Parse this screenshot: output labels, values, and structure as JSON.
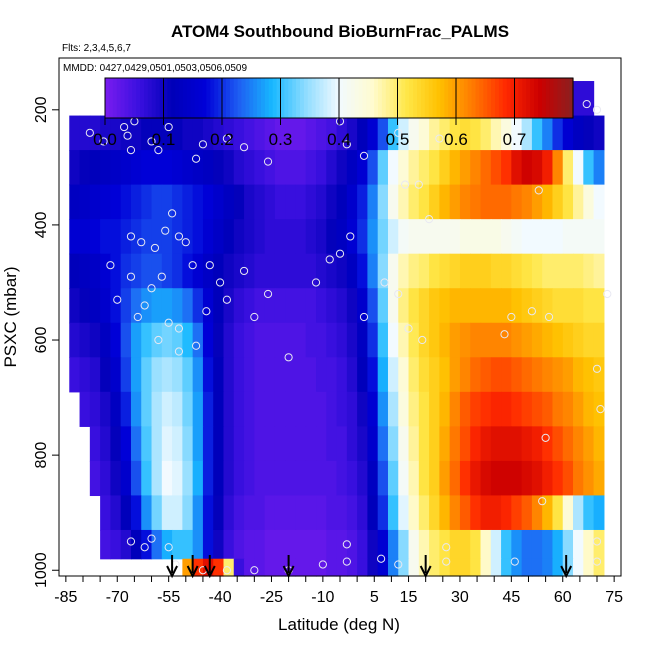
{
  "chart_data": {
    "type": "heatmap",
    "title": "ATOM4 Southbound BioBurnFrac_PALMS",
    "subtitle": "Flts: 2,3,4,5,6,7",
    "annotation": "MMDD: 0427,0429,0501,0503,0506,0509",
    "xlabel": "Latitude (deg N)",
    "ylabel": "PSXC (mbar)",
    "xlim": [
      -87,
      77
    ],
    "ylim": [
      1010,
      110
    ],
    "y_reversed": true,
    "x_ticks": [
      -85,
      -70,
      -55,
      -40,
      -25,
      -10,
      5,
      15,
      30,
      45,
      60,
      75
    ],
    "x_minor_step": 5,
    "y_ticks": [
      200,
      400,
      600,
      800,
      1000
    ],
    "colorbar": {
      "min": 0.0,
      "max": 0.8,
      "ticks": [
        0.0,
        0.1,
        0.2,
        0.3,
        0.4,
        0.5,
        0.6,
        0.7
      ],
      "tick_labels": [
        "0.0",
        "0.1",
        "0.2",
        "0.3",
        "0.4",
        "0.5",
        "0.6",
        "0.7"
      ],
      "colors": [
        "#7a1cf0",
        "#3b10e0",
        "#0000b8",
        "#0000d8",
        "#1e5ef2",
        "#17b8ff",
        "#8edcff",
        "#f2faff",
        "#fffbd0",
        "#ffe84a",
        "#ffc000",
        "#ff7a00",
        "#ff2800",
        "#cc0000",
        "#8a2020"
      ]
    },
    "field_latitude_edges": [
      -84,
      -81,
      -78,
      -75,
      -72,
      -69,
      -66,
      -63,
      -60,
      -57,
      -54,
      -51,
      -48,
      -45,
      -42,
      -39,
      -36,
      -33,
      -30,
      -27,
      -24,
      -21,
      -18,
      -15,
      -12,
      -9,
      -6,
      -3,
      0,
      3,
      6,
      9,
      12,
      15,
      18,
      21,
      24,
      27,
      30,
      33,
      36,
      39,
      42,
      45,
      48,
      51,
      54,
      57,
      60,
      63,
      66,
      69,
      72
    ],
    "field_pressure_levels": [
      180,
      240,
      300,
      360,
      420,
      480,
      540,
      600,
      660,
      720,
      780,
      840,
      900,
      960,
      1000
    ],
    "field_values": [
      [
        null,
        null,
        null,
        null,
        null,
        null,
        null,
        0.06,
        0.06,
        0.06,
        0.06,
        0.05,
        0.05,
        0.05,
        0.04,
        0.04,
        0.03,
        0.03,
        0.02,
        0.02,
        0.01,
        0.01,
        0.02,
        0.02,
        0.03,
        0.03,
        0.04,
        0.05,
        0.07,
        0.09,
        0.12,
        0.14,
        0.16,
        0.18,
        0.2,
        0.21,
        0.22,
        0.22,
        0.22,
        0.22,
        0.2,
        0.18,
        0.16,
        0.14,
        0.12,
        0.1,
        0.09,
        0.08,
        0.07,
        0.07,
        0.07,
        null
      ],
      [
        0.08,
        0.08,
        0.08,
        0.09,
        0.09,
        0.1,
        0.1,
        0.11,
        0.11,
        0.11,
        0.11,
        0.1,
        0.1,
        0.09,
        0.08,
        0.07,
        0.06,
        0.05,
        0.04,
        0.03,
        0.02,
        0.02,
        0.02,
        0.03,
        0.04,
        0.05,
        0.07,
        0.09,
        0.12,
        0.16,
        0.22,
        0.3,
        0.38,
        0.42,
        0.45,
        0.48,
        0.5,
        0.52,
        0.53,
        0.52,
        0.5,
        0.47,
        0.44,
        0.4,
        0.36,
        0.3,
        0.25,
        0.2,
        0.16,
        0.13,
        0.11,
        0.1
      ],
      [
        0.1,
        0.11,
        0.12,
        0.13,
        0.14,
        0.15,
        0.16,
        0.17,
        0.17,
        0.17,
        0.16,
        0.15,
        0.14,
        0.13,
        0.11,
        0.1,
        0.08,
        0.07,
        0.06,
        0.05,
        0.04,
        0.04,
        0.04,
        0.05,
        0.06,
        0.08,
        0.1,
        0.13,
        0.16,
        0.22,
        0.32,
        0.4,
        0.45,
        0.48,
        0.5,
        0.52,
        0.55,
        0.58,
        0.6,
        0.62,
        0.64,
        0.66,
        0.68,
        0.72,
        0.74,
        0.73,
        0.7,
        0.62,
        0.5,
        0.4,
        0.3,
        0.25
      ],
      [
        0.13,
        0.14,
        0.15,
        0.16,
        0.17,
        0.18,
        0.19,
        0.2,
        0.21,
        0.21,
        0.2,
        0.19,
        0.18,
        0.17,
        0.15,
        0.13,
        0.11,
        0.09,
        0.08,
        0.07,
        0.06,
        0.06,
        0.06,
        0.07,
        0.08,
        0.1,
        0.12,
        0.15,
        0.19,
        0.25,
        0.34,
        0.42,
        0.47,
        0.5,
        0.52,
        0.55,
        0.58,
        0.6,
        0.62,
        0.63,
        0.64,
        0.64,
        0.64,
        0.63,
        0.62,
        0.6,
        0.58,
        0.55,
        0.52,
        0.48,
        0.44,
        0.4
      ],
      [
        0.16,
        0.16,
        0.17,
        0.18,
        0.18,
        0.19,
        0.2,
        0.21,
        0.21,
        0.21,
        0.2,
        0.19,
        0.18,
        0.16,
        0.14,
        0.12,
        0.1,
        0.09,
        0.08,
        0.07,
        0.07,
        0.07,
        0.07,
        0.08,
        0.09,
        0.11,
        0.13,
        0.16,
        0.2,
        0.26,
        0.33,
        0.38,
        0.41,
        0.42,
        0.42,
        0.42,
        0.42,
        0.42,
        0.43,
        0.43,
        0.43,
        0.43,
        0.42,
        0.41,
        0.4,
        0.4,
        0.4,
        0.4,
        0.41,
        0.41,
        0.41,
        0.41
      ],
      [
        0.12,
        0.13,
        0.14,
        0.16,
        0.18,
        0.2,
        0.21,
        0.22,
        0.22,
        0.21,
        0.2,
        0.18,
        0.16,
        0.14,
        0.12,
        0.1,
        0.09,
        0.08,
        0.07,
        0.07,
        0.07,
        0.07,
        0.07,
        0.07,
        0.08,
        0.09,
        0.1,
        0.13,
        0.18,
        0.25,
        0.34,
        0.42,
        0.47,
        0.49,
        0.5,
        0.52,
        0.53,
        0.54,
        0.55,
        0.55,
        0.55,
        0.54,
        0.54,
        0.53,
        0.52,
        0.51,
        0.5,
        0.5,
        0.5,
        0.5,
        0.49,
        0.48
      ],
      [
        0.1,
        0.11,
        0.13,
        0.15,
        0.18,
        0.21,
        0.24,
        0.26,
        0.27,
        0.27,
        0.26,
        0.24,
        0.2,
        0.16,
        0.12,
        0.09,
        0.07,
        0.06,
        0.05,
        0.05,
        0.05,
        0.05,
        0.05,
        0.05,
        0.06,
        0.07,
        0.08,
        0.1,
        0.15,
        0.22,
        0.32,
        0.42,
        0.49,
        0.52,
        0.54,
        0.56,
        0.57,
        0.58,
        0.58,
        0.58,
        0.58,
        0.58,
        0.58,
        0.57,
        0.56,
        0.55,
        0.54,
        0.53,
        0.53,
        0.53,
        0.52,
        0.52
      ],
      [
        0.08,
        0.09,
        0.1,
        0.13,
        0.17,
        0.22,
        0.27,
        0.3,
        0.32,
        0.33,
        0.32,
        0.29,
        0.24,
        0.17,
        0.11,
        0.08,
        0.06,
        0.05,
        0.04,
        0.04,
        0.04,
        0.04,
        0.04,
        0.05,
        0.05,
        0.06,
        0.07,
        0.09,
        0.13,
        0.2,
        0.3,
        0.4,
        0.47,
        0.51,
        0.54,
        0.56,
        0.58,
        0.6,
        0.61,
        0.62,
        0.62,
        0.62,
        0.62,
        0.61,
        0.6,
        0.59,
        0.58,
        0.57,
        0.56,
        0.55,
        0.54,
        0.54
      ],
      [
        0.06,
        0.07,
        0.08,
        0.11,
        0.15,
        0.21,
        0.27,
        0.32,
        0.35,
        0.36,
        0.35,
        0.32,
        0.26,
        0.18,
        0.12,
        0.08,
        0.06,
        0.05,
        0.04,
        0.04,
        0.04,
        0.04,
        0.04,
        0.04,
        0.05,
        0.05,
        0.06,
        0.08,
        0.12,
        0.18,
        0.28,
        0.38,
        0.45,
        0.5,
        0.53,
        0.55,
        0.57,
        0.6,
        0.62,
        0.64,
        0.65,
        0.66,
        0.66,
        0.65,
        0.64,
        0.63,
        0.62,
        0.61,
        0.6,
        0.58,
        0.57,
        0.56
      ],
      [
        null,
        0.06,
        0.07,
        0.09,
        0.13,
        0.19,
        0.26,
        0.32,
        0.36,
        0.38,
        0.37,
        0.33,
        0.27,
        0.19,
        0.12,
        0.08,
        0.06,
        0.05,
        0.04,
        0.04,
        0.04,
        0.04,
        0.04,
        0.04,
        0.04,
        0.05,
        0.06,
        0.07,
        0.1,
        0.16,
        0.26,
        0.36,
        0.44,
        0.49,
        0.52,
        0.55,
        0.58,
        0.62,
        0.65,
        0.67,
        0.68,
        0.69,
        0.69,
        0.68,
        0.67,
        0.66,
        0.65,
        0.63,
        0.62,
        0.6,
        0.58,
        0.57
      ],
      [
        null,
        null,
        0.06,
        0.08,
        0.11,
        0.17,
        0.24,
        0.31,
        0.36,
        0.39,
        0.38,
        0.34,
        0.27,
        0.19,
        0.12,
        0.08,
        0.06,
        0.05,
        0.04,
        0.04,
        0.04,
        0.04,
        0.04,
        0.04,
        0.04,
        0.05,
        0.05,
        0.07,
        0.09,
        0.15,
        0.24,
        0.34,
        0.42,
        0.48,
        0.52,
        0.55,
        0.59,
        0.63,
        0.66,
        0.69,
        0.71,
        0.72,
        0.72,
        0.72,
        0.71,
        0.7,
        0.68,
        0.66,
        0.64,
        0.62,
        0.6,
        0.58
      ],
      [
        null,
        null,
        0.05,
        0.07,
        0.1,
        0.15,
        0.22,
        0.3,
        0.36,
        0.4,
        0.39,
        0.35,
        0.28,
        0.19,
        0.12,
        0.08,
        0.06,
        0.05,
        0.04,
        0.04,
        0.04,
        0.04,
        0.04,
        0.04,
        0.04,
        0.04,
        0.05,
        0.06,
        0.08,
        0.13,
        0.22,
        0.32,
        0.41,
        0.47,
        0.52,
        0.55,
        0.6,
        0.64,
        0.68,
        0.71,
        0.73,
        0.74,
        0.74,
        0.74,
        0.73,
        0.72,
        0.7,
        0.68,
        0.66,
        0.63,
        0.61,
        0.59
      ],
      [
        null,
        null,
        null,
        0.06,
        0.08,
        0.12,
        0.18,
        0.26,
        0.33,
        0.38,
        0.38,
        0.34,
        0.26,
        0.18,
        0.11,
        0.07,
        0.05,
        0.04,
        0.04,
        0.03,
        0.03,
        0.03,
        0.03,
        0.03,
        0.03,
        0.04,
        0.04,
        0.05,
        0.07,
        0.12,
        0.2,
        0.3,
        0.39,
        0.46,
        0.5,
        0.54,
        0.58,
        0.62,
        0.65,
        0.68,
        0.7,
        0.7,
        0.69,
        0.67,
        0.65,
        0.62,
        0.58,
        0.52,
        0.45,
        0.36,
        0.3,
        0.28
      ],
      [
        null,
        null,
        null,
        0.05,
        0.06,
        0.08,
        0.12,
        0.18,
        0.24,
        0.28,
        0.3,
        0.3,
        0.26,
        0.18,
        0.1,
        0.06,
        0.04,
        0.03,
        0.03,
        0.02,
        0.02,
        0.02,
        0.02,
        0.02,
        0.02,
        0.03,
        0.03,
        0.04,
        0.06,
        0.1,
        0.16,
        0.25,
        0.34,
        0.42,
        0.47,
        0.5,
        0.52,
        0.54,
        0.54,
        0.52,
        0.46,
        0.38,
        0.3,
        0.26,
        0.24,
        0.24,
        0.25,
        0.28,
        0.34,
        0.4,
        0.46,
        0.5
      ],
      [
        null,
        null,
        null,
        null,
        null,
        null,
        null,
        null,
        null,
        null,
        null,
        0.6,
        0.68,
        0.72,
        0.68,
        0.5,
        0.06,
        0.03,
        0.03,
        0.02,
        0.02,
        0.02,
        0.02,
        0.02,
        0.02,
        0.03,
        0.03,
        0.04,
        0.06,
        0.1,
        0.16,
        0.25,
        0.34,
        0.42,
        0.47,
        0.5,
        0.52,
        0.54,
        0.54,
        0.52,
        0.46,
        0.38,
        0.3,
        0.26,
        0.24,
        0.24,
        0.25,
        0.28,
        0.34,
        0.4,
        0.46,
        0.5
      ]
    ],
    "observations": [
      [
        -78,
        240
      ],
      [
        -74,
        255
      ],
      [
        -68,
        230
      ],
      [
        -67,
        245
      ],
      [
        -66,
        270
      ],
      [
        -65,
        220
      ],
      [
        -62,
        200
      ],
      [
        -60,
        255
      ],
      [
        -58,
        270
      ],
      [
        -55,
        230
      ],
      [
        -50,
        190
      ],
      [
        -49,
        200
      ],
      [
        -47,
        285
      ],
      [
        -45,
        260
      ],
      [
        -38,
        250
      ],
      [
        -33,
        265
      ],
      [
        -26,
        290
      ],
      [
        -15,
        205
      ],
      [
        -13,
        205
      ],
      [
        -5,
        220
      ],
      [
        -3,
        260
      ],
      [
        2,
        280
      ],
      [
        12,
        240
      ],
      [
        20,
        200
      ],
      [
        24,
        250
      ],
      [
        67,
        190
      ],
      [
        70,
        200
      ],
      [
        -66,
        420
      ],
      [
        -63,
        430
      ],
      [
        -59,
        440
      ],
      [
        -56,
        410
      ],
      [
        -52,
        420
      ],
      [
        -48,
        470
      ],
      [
        -60,
        510
      ],
      [
        -62,
        540
      ],
      [
        -58,
        600
      ],
      [
        -55,
        570
      ],
      [
        -52,
        580
      ],
      [
        -44,
        550
      ],
      [
        -40,
        500
      ],
      [
        -38,
        530
      ],
      [
        -33,
        480
      ],
      [
        -26,
        520
      ],
      [
        -20,
        630
      ],
      [
        -12,
        500
      ],
      [
        -8,
        460
      ],
      [
        -5,
        450
      ],
      [
        -2,
        420
      ],
      [
        2,
        560
      ],
      [
        8,
        500
      ],
      [
        12,
        520
      ],
      [
        15,
        580
      ],
      [
        19,
        600
      ],
      [
        21,
        390
      ],
      [
        14,
        330
      ],
      [
        18,
        330
      ],
      [
        -72,
        470
      ],
      [
        -70,
        530
      ],
      [
        -66,
        490
      ],
      [
        -64,
        560
      ],
      [
        -57,
        490
      ],
      [
        -54,
        380
      ],
      [
        -50,
        430
      ],
      [
        -43,
        470
      ],
      [
        -30,
        560
      ],
      [
        -47,
        610
      ],
      [
        -52,
        620
      ],
      [
        53,
        340
      ],
      [
        51,
        550
      ],
      [
        56,
        560
      ],
      [
        73,
        520
      ],
      [
        45,
        560
      ],
      [
        43,
        590
      ],
      [
        71,
        720
      ],
      [
        70,
        650
      ],
      [
        55,
        770
      ],
      [
        54,
        880
      ],
      [
        -66,
        950
      ],
      [
        -62,
        960
      ],
      [
        -60,
        945
      ],
      [
        -55,
        960
      ],
      [
        -53,
        990
      ],
      [
        -45,
        1000
      ],
      [
        -38,
        1000
      ],
      [
        -30,
        1000
      ],
      [
        -20,
        1000
      ],
      [
        -10,
        990
      ],
      [
        -3,
        955
      ],
      [
        -3,
        985
      ],
      [
        7,
        980
      ],
      [
        12,
        990
      ],
      [
        26,
        960
      ],
      [
        26,
        985
      ],
      [
        46,
        985
      ],
      [
        70,
        950
      ],
      [
        70,
        985
      ]
    ],
    "arrow_latitudes": [
      -54,
      -48,
      -43,
      -20,
      20,
      61
    ]
  }
}
